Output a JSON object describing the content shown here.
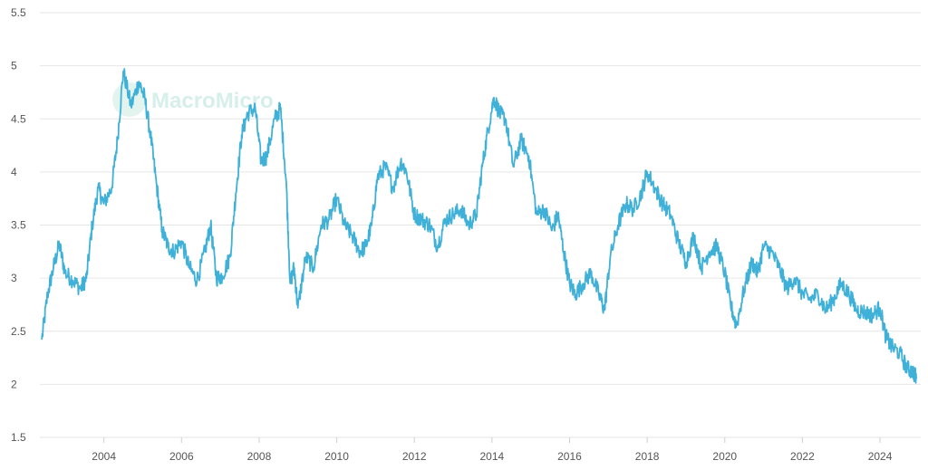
{
  "watermark": {
    "text": "MacroMicro"
  },
  "colors": {
    "series": "#3fb1d8",
    "grid": "#e6e6e6",
    "watermark": "#d6efe9"
  },
  "chart_data": {
    "type": "line",
    "title": "",
    "xlabel": "",
    "ylabel": "",
    "xlim": [
      2002.35,
      2025.05
    ],
    "ylim": [
      1.5,
      5.5
    ],
    "yticks": [
      1.5,
      2,
      2.5,
      3,
      3.5,
      4,
      4.5,
      5,
      5.5
    ],
    "ytick_labels": [
      "1.5",
      "2",
      "2.5",
      "3",
      "3.5",
      "4",
      "4.5",
      "5",
      "5.5"
    ],
    "xticks": [
      2004,
      2006,
      2008,
      2010,
      2012,
      2014,
      2016,
      2018,
      2020,
      2022,
      2024
    ],
    "xtick_labels": [
      "2004",
      "2006",
      "2008",
      "2010",
      "2012",
      "2014",
      "2016",
      "2018",
      "2020",
      "2022",
      "2024"
    ],
    "grid": true,
    "legend": "none",
    "series": [
      {
        "x": [
          2002.4,
          2002.55,
          2002.7,
          2002.85,
          2003.0,
          2003.2,
          2003.4,
          2003.55,
          2003.7,
          2003.85,
          2004.0,
          2004.2,
          2004.35,
          2004.5,
          2004.7,
          2004.9,
          2005.05,
          2005.2,
          2005.35,
          2005.5,
          2005.65,
          2005.8,
          2006.0,
          2006.2,
          2006.4,
          2006.6,
          2006.75,
          2006.9,
          2007.05,
          2007.25,
          2007.4,
          2007.55,
          2007.7,
          2007.9,
          2008.05,
          2008.2,
          2008.4,
          2008.55,
          2008.7,
          2008.8,
          2008.9,
          2009.0,
          2009.2,
          2009.4,
          2009.6,
          2009.8,
          2010.0,
          2010.2,
          2010.4,
          2010.6,
          2010.75,
          2010.9,
          2011.05,
          2011.25,
          2011.45,
          2011.65,
          2011.8,
          2012.0,
          2012.2,
          2012.4,
          2012.6,
          2012.8,
          2013.0,
          2013.2,
          2013.4,
          2013.6,
          2013.75,
          2013.9,
          2014.05,
          2014.2,
          2014.35,
          2014.55,
          2014.75,
          2014.95,
          2015.15,
          2015.35,
          2015.55,
          2015.7,
          2015.85,
          2016.0,
          2016.15,
          2016.35,
          2016.55,
          2016.75,
          2016.9,
          2017.05,
          2017.25,
          2017.45,
          2017.65,
          2017.85,
          2018.0,
          2018.2,
          2018.4,
          2018.6,
          2018.8,
          2019.0,
          2019.2,
          2019.4,
          2019.6,
          2019.8,
          2020.0,
          2020.15,
          2020.3,
          2020.5,
          2020.7,
          2020.85,
          2021.0,
          2021.2,
          2021.4,
          2021.6,
          2021.8,
          2022.0,
          2022.2,
          2022.4,
          2022.6,
          2022.8,
          2023.0,
          2023.2,
          2023.4,
          2023.6,
          2023.8,
          2024.0,
          2024.15,
          2024.3,
          2024.5,
          2024.7,
          2024.85,
          2024.95
        ],
        "values": [
          2.42,
          2.85,
          3.1,
          3.32,
          3.05,
          2.98,
          2.9,
          3.0,
          3.5,
          3.85,
          3.7,
          3.85,
          4.3,
          4.95,
          4.62,
          4.85,
          4.7,
          4.35,
          3.9,
          3.45,
          3.3,
          3.25,
          3.35,
          3.1,
          2.98,
          3.25,
          3.5,
          3.0,
          3.02,
          3.2,
          3.8,
          4.35,
          4.55,
          4.6,
          4.1,
          4.15,
          4.5,
          4.6,
          3.9,
          2.95,
          3.1,
          2.72,
          3.2,
          3.1,
          3.5,
          3.55,
          3.75,
          3.5,
          3.4,
          3.25,
          3.3,
          3.5,
          3.95,
          4.05,
          3.85,
          4.1,
          4.0,
          3.6,
          3.55,
          3.5,
          3.3,
          3.55,
          3.6,
          3.65,
          3.5,
          3.6,
          4.05,
          4.4,
          4.7,
          4.55,
          4.5,
          4.05,
          4.3,
          4.15,
          3.6,
          3.65,
          3.45,
          3.6,
          3.25,
          2.95,
          2.85,
          2.95,
          3.05,
          2.85,
          2.7,
          3.2,
          3.5,
          3.7,
          3.65,
          3.8,
          4.0,
          3.85,
          3.7,
          3.6,
          3.35,
          3.15,
          3.4,
          3.1,
          3.25,
          3.3,
          3.05,
          2.75,
          2.55,
          2.9,
          3.15,
          3.05,
          3.3,
          3.25,
          3.1,
          2.9,
          3.0,
          2.85,
          2.8,
          2.85,
          2.7,
          2.8,
          2.95,
          2.85,
          2.7,
          2.68,
          2.65,
          2.72,
          2.45,
          2.35,
          2.3,
          2.15,
          2.12,
          2.05
        ]
      }
    ]
  }
}
